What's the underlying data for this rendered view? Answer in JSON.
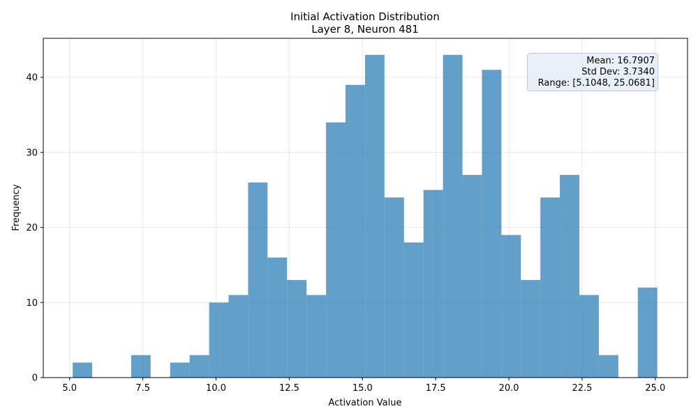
{
  "chart_data": {
    "type": "bar",
    "title": "Initial Activation Distribution",
    "subtitle": "Layer 8, Neuron 481",
    "xlabel": "Activation Value",
    "ylabel": "Frequency",
    "xlim": [
      4.1,
      26.1
    ],
    "ylim": [
      0,
      45.2
    ],
    "xticks": [
      5.0,
      7.5,
      10.0,
      12.5,
      15.0,
      17.5,
      20.0,
      22.5,
      25.0
    ],
    "xtick_labels": [
      "5.0",
      "7.5",
      "10.0",
      "12.5",
      "15.0",
      "17.5",
      "20.0",
      "22.5",
      "25.0"
    ],
    "yticks": [
      0,
      10,
      20,
      30,
      40
    ],
    "ytick_labels": [
      "0",
      "10",
      "20",
      "30",
      "40"
    ],
    "grid": true,
    "bar_color": "#1f77b4",
    "bar_opacity": 0.7,
    "bin_range": [
      5.1048,
      25.0681
    ],
    "bin_count": 30,
    "values": [
      2,
      0,
      0,
      3,
      0,
      2,
      3,
      10,
      11,
      26,
      16,
      13,
      11,
      34,
      39,
      43,
      24,
      18,
      25,
      43,
      27,
      41,
      19,
      13,
      24,
      27,
      11,
      3,
      0,
      12
    ],
    "stats_box": {
      "lines": [
        "Mean: 16.7907",
        "Std Dev: 3.7340",
        "Range: [5.1048, 25.0681]"
      ],
      "placement": "top-right",
      "background": "#dbe6f4"
    }
  }
}
